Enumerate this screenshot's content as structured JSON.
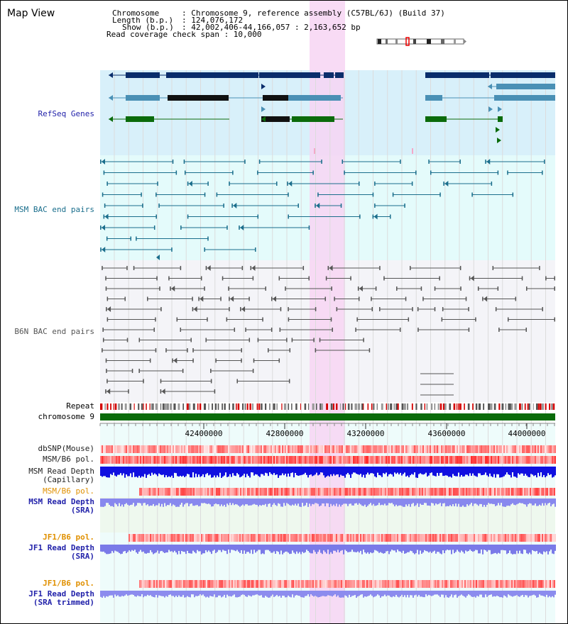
{
  "title": "Map View",
  "info": {
    "chromosome_key": "Chromosome",
    "chromosome_val": ": Chromosome 9, reference assembly (C57BL/6J) (Build 37)",
    "length_key": "Length (b.p.)",
    "length_val": ": 124,076,172",
    "show_key": "Show (b.p.)",
    "show_val": ": 42,002,406-44,166,057 : 2,163,652 bp",
    "span_text": "Read coverage check span : 10,000"
  },
  "tracks": {
    "refseq": "RefSeq Genes",
    "msm_bac": "MSM BAC end pairs",
    "b6n_bac": "B6N BAC end pairs",
    "repeat": "Repeat",
    "chromosome": "chromosome 9",
    "dbsnp": "dbSNP(Mouse)",
    "msm_b6_pol_1": "MSM/B6 pol.",
    "msm_depth_cap_1": "MSM Read Depth",
    "msm_depth_cap_2": "(Capillary)",
    "msm_b6_pol_2": "MSM/B6 pol.",
    "msm_depth_sra_1": "MSM Read Depth",
    "msm_depth_sra_2": "(SRA)",
    "jf1_b6_pol_1": "JF1/B6 pol.",
    "jf1_depth_sra_1": "JF1 Read Depth",
    "jf1_depth_sra_2": "(SRA)",
    "jf1_b6_pol_2": "JF1/B6 pol.",
    "jf1_depth_trim_1": "JF1 Read Depth",
    "jf1_depth_trim_2": "(SRA trimmed)"
  },
  "axis": {
    "ticks": [
      "42400000",
      "42800000",
      "43200000",
      "43600000",
      "44000000"
    ]
  },
  "colors": {
    "highlight": "#f7d5f3",
    "refseq_bg": "#d8f0fa",
    "msm_bac_bg": "#e4fbfb",
    "b6n_bac_bg": "#f4f4f8",
    "gene_navy": "#0a2d6b",
    "gene_teal": "#4a90b5",
    "gene_green": "#0b6b0b",
    "msm_bac_line": "#1a6e8c",
    "b6n_bac_line": "#555555",
    "chromosome_bar": "#0a6b0a",
    "label_blue": "#2222aa",
    "label_teal": "#1a6e8c",
    "label_orange": "#e09000"
  }
}
